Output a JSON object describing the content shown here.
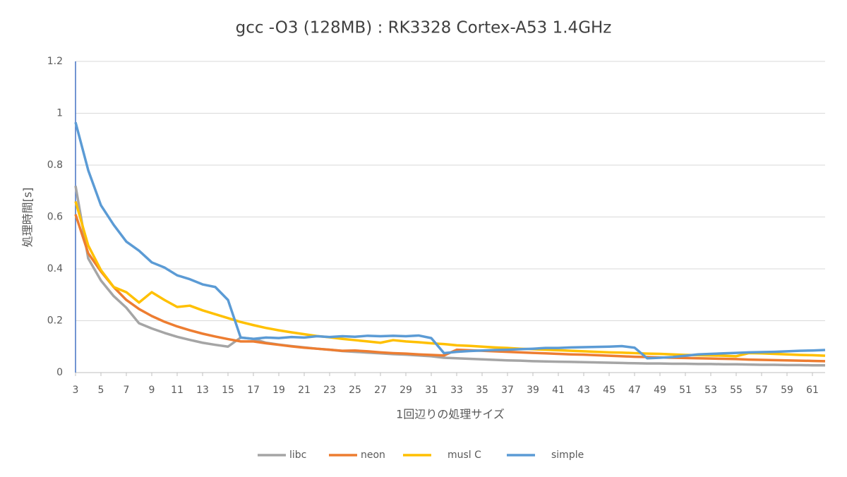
{
  "chart_data": {
    "type": "line",
    "title": "gcc -O3 (128MB) : RK3328 Cortex-A53 1.4GHz",
    "x_label": "1回辺りの処理サイズ",
    "y_label": "処理時間[s]",
    "x": [
      3,
      4,
      5,
      6,
      7,
      8,
      9,
      10,
      11,
      12,
      13,
      14,
      15,
      16,
      17,
      18,
      19,
      20,
      21,
      22,
      23,
      24,
      25,
      26,
      27,
      28,
      29,
      30,
      31,
      32,
      33,
      34,
      35,
      36,
      37,
      38,
      39,
      40,
      41,
      42,
      43,
      44,
      45,
      46,
      47,
      48,
      49,
      50,
      51,
      52,
      53,
      54,
      55,
      56,
      57,
      58,
      59,
      60,
      61,
      62
    ],
    "xlim": [
      3,
      62
    ],
    "xticks": [
      3,
      5,
      7,
      9,
      11,
      13,
      15,
      17,
      19,
      21,
      23,
      25,
      27,
      29,
      31,
      33,
      35,
      37,
      39,
      41,
      43,
      45,
      47,
      49,
      51,
      53,
      55,
      57,
      59,
      61
    ],
    "ylim": [
      0,
      1.2
    ],
    "yticks": [
      0,
      0.2,
      0.4,
      0.6,
      0.8,
      1,
      1.2
    ],
    "grid": true,
    "legend": "bottom",
    "series": [
      {
        "name": "libc",
        "color": "#a5a5a5",
        "values": [
          0.72,
          0.44,
          0.355,
          0.295,
          0.25,
          0.19,
          0.17,
          0.153,
          0.138,
          0.126,
          0.115,
          0.107,
          0.1,
          0.135,
          0.13,
          0.115,
          0.108,
          0.102,
          0.097,
          0.092,
          0.088,
          0.083,
          0.08,
          0.077,
          0.074,
          0.071,
          0.069,
          0.066,
          0.063,
          0.057,
          0.055,
          0.053,
          0.051,
          0.049,
          0.047,
          0.046,
          0.044,
          0.043,
          0.042,
          0.041,
          0.04,
          0.039,
          0.038,
          0.037,
          0.036,
          0.035,
          0.035,
          0.034,
          0.034,
          0.033,
          0.033,
          0.032,
          0.032,
          0.031,
          0.03,
          0.03,
          0.029,
          0.029,
          0.028,
          0.028
        ]
      },
      {
        "name": "neon",
        "color": "#ed7d31",
        "values": [
          0.61,
          0.46,
          0.39,
          0.33,
          0.28,
          0.245,
          0.218,
          0.196,
          0.178,
          0.163,
          0.15,
          0.139,
          0.129,
          0.12,
          0.12,
          0.113,
          0.107,
          0.101,
          0.096,
          0.092,
          0.088,
          0.084,
          0.085,
          0.082,
          0.078,
          0.075,
          0.073,
          0.07,
          0.068,
          0.066,
          0.088,
          0.086,
          0.084,
          0.082,
          0.08,
          0.078,
          0.076,
          0.074,
          0.072,
          0.07,
          0.069,
          0.067,
          0.065,
          0.063,
          0.061,
          0.06,
          0.058,
          0.057,
          0.056,
          0.055,
          0.054,
          0.053,
          0.052,
          0.05,
          0.049,
          0.048,
          0.047,
          0.046,
          0.045,
          0.044
        ]
      },
      {
        "name": "musl C",
        "color": "#ffc000",
        "values": [
          0.66,
          0.49,
          0.395,
          0.33,
          0.31,
          0.27,
          0.31,
          0.28,
          0.253,
          0.258,
          0.24,
          0.225,
          0.21,
          0.195,
          0.183,
          0.172,
          0.163,
          0.155,
          0.148,
          0.141,
          0.136,
          0.13,
          0.125,
          0.12,
          0.115,
          0.125,
          0.12,
          0.117,
          0.113,
          0.11,
          0.105,
          0.103,
          0.1,
          0.097,
          0.095,
          0.092,
          0.09,
          0.088,
          0.086,
          0.084,
          0.082,
          0.08,
          0.078,
          0.077,
          0.075,
          0.073,
          0.072,
          0.07,
          0.068,
          0.067,
          0.066,
          0.065,
          0.063,
          0.075,
          0.074,
          0.072,
          0.07,
          0.068,
          0.067,
          0.065
        ]
      },
      {
        "name": "simple",
        "color": "#5b9bd5",
        "values": [
          0.965,
          0.78,
          0.645,
          0.57,
          0.505,
          0.47,
          0.425,
          0.405,
          0.375,
          0.36,
          0.34,
          0.33,
          0.28,
          0.135,
          0.13,
          0.135,
          0.133,
          0.137,
          0.135,
          0.14,
          0.137,
          0.14,
          0.138,
          0.142,
          0.14,
          0.142,
          0.14,
          0.143,
          0.133,
          0.075,
          0.08,
          0.083,
          0.085,
          0.087,
          0.088,
          0.09,
          0.092,
          0.095,
          0.095,
          0.097,
          0.098,
          0.099,
          0.1,
          0.102,
          0.096,
          0.055,
          0.057,
          0.06,
          0.065,
          0.07,
          0.072,
          0.074,
          0.076,
          0.078,
          0.079,
          0.08,
          0.082,
          0.084,
          0.085,
          0.087
        ]
      }
    ]
  }
}
